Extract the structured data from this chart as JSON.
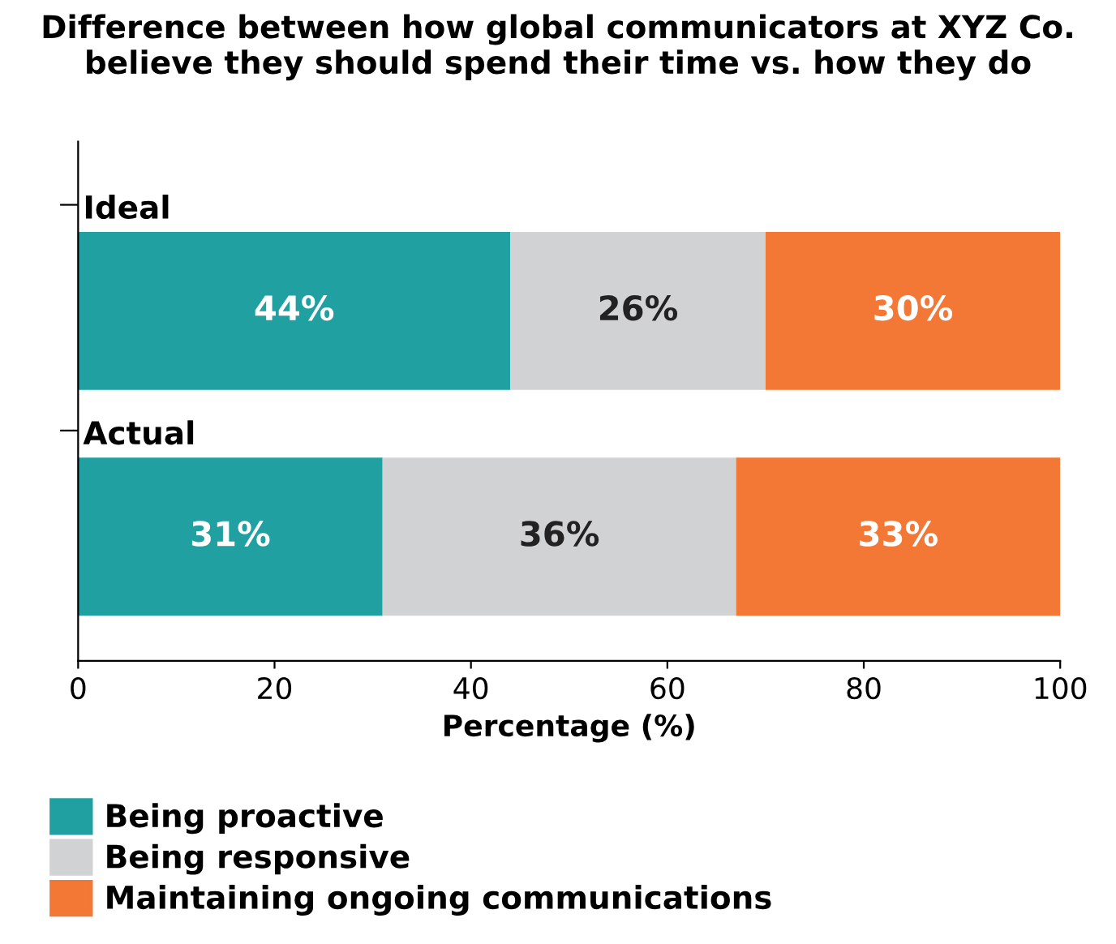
{
  "chart_data": {
    "type": "bar",
    "orientation": "horizontal",
    "stacked": true,
    "title": "Difference between how global communicators at XYZ Co. believe they should spend their time vs. how they do",
    "xlabel": "Percentage (%)",
    "categories": [
      "Ideal",
      "Actual"
    ],
    "series": [
      {
        "name": "Being proactive",
        "color": "#21a0a2",
        "values": [
          44,
          31
        ]
      },
      {
        "name": "Being responsive",
        "color": "#d1d2d4",
        "values": [
          26,
          36
        ]
      },
      {
        "name": "Maintaining ongoing communications",
        "color": "#f37735",
        "values": [
          30,
          33
        ]
      }
    ],
    "value_labels": [
      [
        "44%",
        "31%"
      ],
      [
        "26%",
        "36%"
      ],
      [
        "30%",
        "33%"
      ]
    ],
    "xlim": [
      0,
      100
    ],
    "xticks": [
      0,
      20,
      40,
      60,
      80,
      100
    ],
    "grid": false,
    "legend": "bottom"
  }
}
